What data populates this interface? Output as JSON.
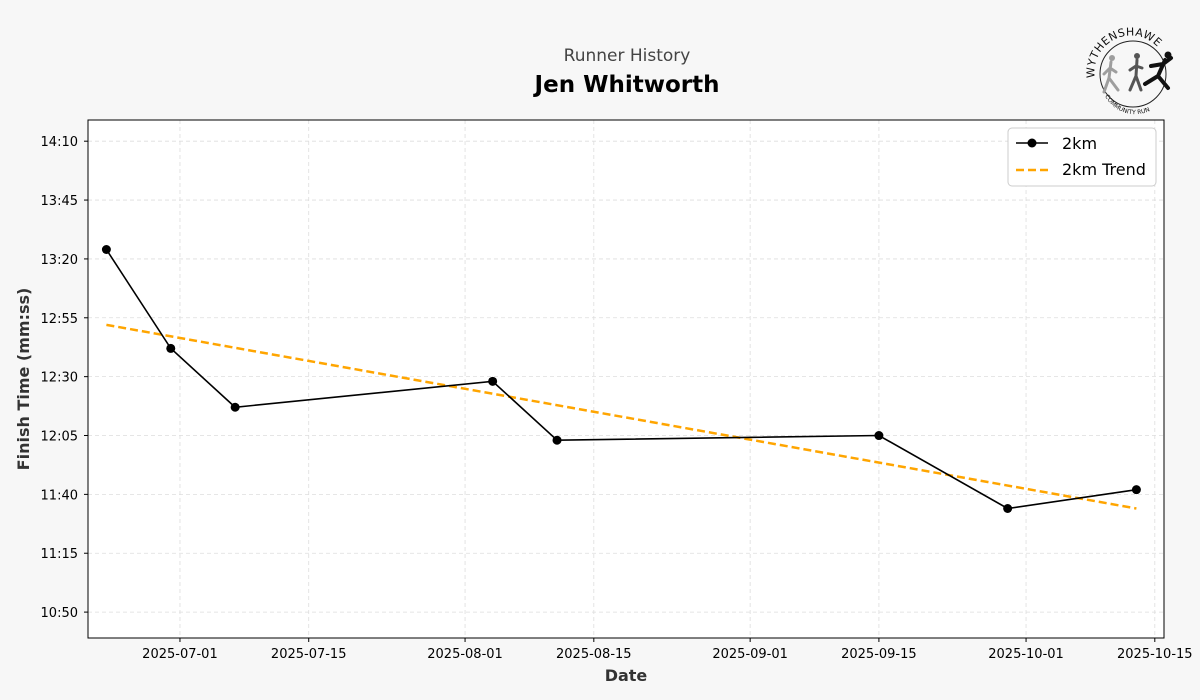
{
  "header": {
    "subtitle": "Runner History",
    "title": "Jen Whitworth"
  },
  "logo": {
    "top_text": "WYTHENSHAWE",
    "bottom_text": "COMMUNITY RUN",
    "colors": [
      "#9e9e9e",
      "#555555",
      "#111111"
    ]
  },
  "chart_data": {
    "type": "line",
    "title": "Jen Whitworth",
    "subtitle": "Runner History",
    "xlabel": "Date",
    "ylabel": "Finish Time (mm:ss)",
    "xlim": [
      "2025-06-21",
      "2025-10-16"
    ],
    "ylim": [
      "10:39",
      "14:19"
    ],
    "x_ticks": [
      "2025-07-01",
      "2025-07-15",
      "2025-08-01",
      "2025-08-15",
      "2025-09-01",
      "2025-09-15",
      "2025-10-01",
      "2025-10-15"
    ],
    "y_ticks": [
      "10:50",
      "11:15",
      "11:40",
      "12:05",
      "12:30",
      "12:55",
      "13:20",
      "13:45",
      "14:10"
    ],
    "grid": true,
    "legend_position": "top-right",
    "series": [
      {
        "name": "2km",
        "color": "#000000",
        "style": "solid-with-markers",
        "x": [
          "2025-06-23",
          "2025-06-30",
          "2025-07-07",
          "2025-08-04",
          "2025-08-11",
          "2025-09-15",
          "2025-09-29",
          "2025-10-13"
        ],
        "y": [
          "13:24",
          "12:42",
          "12:17",
          "12:28",
          "12:03",
          "12:05",
          "11:34",
          "11:42"
        ]
      },
      {
        "name": "2km Trend",
        "color": "#ffa500",
        "style": "dashed",
        "x": [
          "2025-06-23",
          "2025-10-13"
        ],
        "y": [
          "12:52",
          "11:34"
        ]
      }
    ]
  }
}
